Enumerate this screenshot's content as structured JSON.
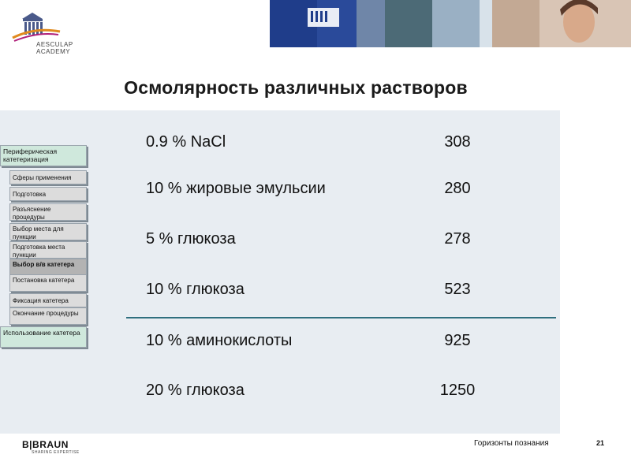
{
  "header": {
    "logo_text_line1": "AESCULAP",
    "logo_text_line2": "ACADEMY"
  },
  "title": "Осмолярность различных растворов",
  "nav": {
    "main_top": "Периферическая катетеризация",
    "items": [
      "Сферы применения",
      "Подготовка",
      "Разъяснение процедуры",
      "Выбор места для пункции",
      "Подготовка места пункции",
      "Выбор в/в катетера",
      "Постановка катетера",
      "Фиксация катетера",
      "Окончание процедуры"
    ],
    "main_bottom": "Использование катетера"
  },
  "rows": [
    {
      "label": "0.9 % NaCl",
      "value": "308"
    },
    {
      "label": "10 % жировые эмульсии",
      "value": "280"
    },
    {
      "label": "5 % глюкоза",
      "value": "278"
    },
    {
      "label": "10 % глюкоза",
      "value": "523"
    },
    {
      "label": "10 % аминокислоты",
      "value": "925"
    },
    {
      "label": "20 % глюкоза",
      "value": "1250"
    }
  ],
  "footer": {
    "brand": "B|BRAUN",
    "brand_sub": "SHARING EXPERTISE",
    "text": "Горизонты познания",
    "page": "21"
  }
}
